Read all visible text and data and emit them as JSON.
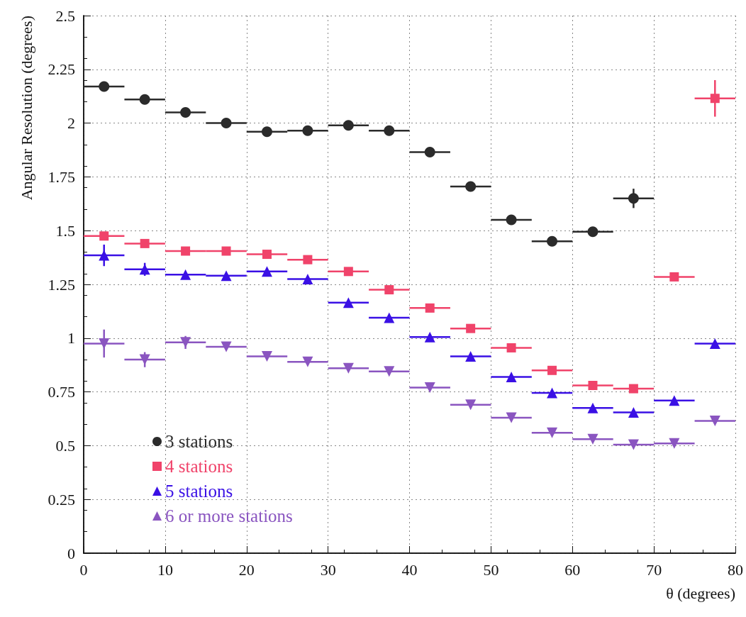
{
  "chart_data": {
    "type": "scatter",
    "xlabel": "θ (degrees)",
    "ylabel": "Angular Resolution (degrees)",
    "xlim": [
      0,
      80
    ],
    "xticks": [
      0,
      10,
      20,
      30,
      40,
      50,
      60,
      70,
      80
    ],
    "ylim": [
      0,
      2.5
    ],
    "yticks": [
      0,
      0.25,
      0.5,
      0.75,
      1,
      1.25,
      1.5,
      1.75,
      2,
      2.25,
      2.5
    ],
    "grid": true,
    "legend": "bottom left",
    "series": [
      {
        "name": "3 stations",
        "color": "#2b2b2b",
        "marker": "circle",
        "x": [
          2.5,
          7.5,
          12.5,
          17.5,
          22.5,
          27.5,
          32.5,
          37.5,
          42.5,
          47.5,
          52.5,
          57.5,
          62.5,
          67.5
        ],
        "values": [
          2.17,
          2.11,
          2.05,
          2.0,
          1.96,
          1.965,
          1.99,
          1.965,
          1.865,
          1.705,
          1.55,
          1.45,
          1.495,
          1.65
        ],
        "xerrors": [
          2.5,
          2.5,
          2.5,
          2.5,
          2.5,
          2.5,
          2.5,
          2.5,
          2.5,
          2.5,
          2.5,
          2.5,
          2.5,
          2.5
        ],
        "errors": [
          null,
          null,
          null,
          null,
          null,
          null,
          null,
          null,
          null,
          null,
          null,
          null,
          null,
          0.045
        ]
      },
      {
        "name": "4 stations",
        "color": "#f0436a",
        "marker": "square",
        "x": [
          2.5,
          7.5,
          12.5,
          17.5,
          22.5,
          27.5,
          32.5,
          37.5,
          42.5,
          47.5,
          52.5,
          57.5,
          62.5,
          67.5,
          72.5,
          77.5
        ],
        "values": [
          1.475,
          1.44,
          1.405,
          1.405,
          1.39,
          1.365,
          1.31,
          1.225,
          1.14,
          1.045,
          0.955,
          0.85,
          0.78,
          0.765,
          1.285,
          2.115
        ],
        "xerrors": [
          2.5,
          2.5,
          2.5,
          2.5,
          2.5,
          2.5,
          2.5,
          2.5,
          2.5,
          2.5,
          2.5,
          2.5,
          2.5,
          2.5,
          2.5,
          2.5
        ],
        "errors": [
          null,
          null,
          null,
          null,
          null,
          null,
          null,
          null,
          null,
          null,
          null,
          null,
          null,
          null,
          null,
          0.085
        ]
      },
      {
        "name": "5 stations",
        "color": "#3a10e5",
        "marker": "triangle",
        "x": [
          2.5,
          7.5,
          12.5,
          17.5,
          22.5,
          27.5,
          32.5,
          37.5,
          42.5,
          47.5,
          52.5,
          57.5,
          62.5,
          67.5,
          72.5,
          77.5
        ],
        "values": [
          1.385,
          1.32,
          1.295,
          1.29,
          1.31,
          1.275,
          1.165,
          1.095,
          1.005,
          0.915,
          0.82,
          0.745,
          0.675,
          0.655,
          0.71,
          0.975
        ],
        "xerrors": [
          2.5,
          2.5,
          2.5,
          2.5,
          2.5,
          2.5,
          2.5,
          2.5,
          2.5,
          2.5,
          2.5,
          2.5,
          2.5,
          2.5,
          2.5,
          2.5
        ],
        "errors": [
          0.05,
          0.03,
          null,
          null,
          null,
          null,
          null,
          null,
          null,
          null,
          null,
          null,
          null,
          null,
          null,
          null
        ]
      },
      {
        "name": "6 or more stations",
        "color": "#8a55c0",
        "marker": "triangle_down",
        "x": [
          2.5,
          7.5,
          12.5,
          17.5,
          22.5,
          27.5,
          32.5,
          37.5,
          42.5,
          47.5,
          52.5,
          57.5,
          62.5,
          67.5,
          72.5,
          77.5
        ],
        "values": [
          0.975,
          0.9,
          0.98,
          0.96,
          0.915,
          0.89,
          0.86,
          0.845,
          0.77,
          0.69,
          0.63,
          0.56,
          0.53,
          0.505,
          0.51,
          0.615
        ],
        "xerrors": [
          2.5,
          2.5,
          2.5,
          2.5,
          2.5,
          2.5,
          2.5,
          2.5,
          2.5,
          2.5,
          2.5,
          2.5,
          2.5,
          2.5,
          2.5,
          2.5
        ],
        "errors": [
          0.065,
          0.035,
          0.03,
          null,
          null,
          null,
          null,
          null,
          null,
          null,
          null,
          null,
          null,
          null,
          null,
          null
        ]
      }
    ]
  }
}
